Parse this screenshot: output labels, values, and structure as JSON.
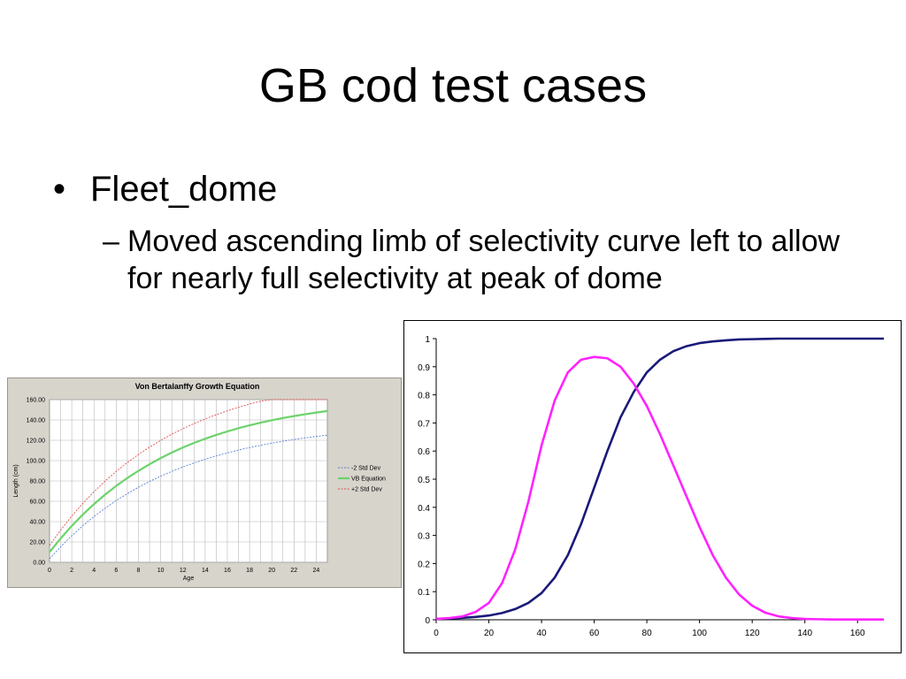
{
  "slide": {
    "title": "GB cod test cases",
    "bullets": [
      {
        "marker": "•",
        "text": "Fleet_dome",
        "sub": [
          {
            "marker": "–",
            "text": "Moved ascending limb of selectivity curve left to allow for nearly full selectivity at peak of dome"
          }
        ]
      }
    ]
  },
  "chart_data": [
    {
      "type": "line",
      "title": "Von Bertalanffy Growth Equation",
      "xlabel": "Age",
      "ylabel": "Length (cm)",
      "xlim": [
        0,
        25
      ],
      "ylim": [
        0,
        160
      ],
      "x_ticks": [
        "0",
        "2",
        "4",
        "6",
        "8",
        "10",
        "12",
        "14",
        "16",
        "18",
        "20",
        "22",
        "24"
      ],
      "y_ticks": [
        "0.00",
        "20.00",
        "40.00",
        "60.00",
        "80.00",
        "100.00",
        "120.00",
        "140.00",
        "160.00"
      ],
      "grid": true,
      "legend_position": "right",
      "x": [
        0,
        1,
        2,
        3,
        4,
        5,
        6,
        7,
        8,
        9,
        10,
        11,
        12,
        13,
        14,
        15,
        16,
        17,
        18,
        19,
        20,
        21,
        22,
        23,
        24,
        25
      ],
      "series": [
        {
          "name": "-2 Std Dev",
          "color": "#5b7fd6",
          "style": "dotted",
          "values": [
            3.5,
            15.3,
            26.1,
            36.0,
            45.0,
            53.2,
            60.7,
            67.5,
            73.8,
            79.5,
            84.7,
            89.4,
            93.8,
            97.7,
            101.3,
            104.6,
            107.6,
            110.4,
            112.9,
            115.1,
            117.2,
            119.1,
            120.8,
            122.4,
            123.8,
            125.1
          ]
        },
        {
          "name": "VB Equation",
          "color": "#6bd36b",
          "style": "solid",
          "values": [
            10.0,
            23.5,
            35.8,
            47.0,
            57.2,
            66.6,
            75.1,
            82.9,
            90.0,
            96.5,
            102.5,
            107.9,
            112.9,
            117.4,
            121.5,
            125.3,
            128.7,
            131.9,
            134.7,
            137.3,
            139.7,
            141.9,
            143.8,
            145.6,
            147.3,
            148.8
          ]
        },
        {
          "name": "+2 Std Dev",
          "color": "#e05050",
          "style": "dotted",
          "values": [
            16.5,
            31.7,
            45.5,
            58.0,
            69.4,
            79.9,
            89.4,
            98.1,
            106.0,
            113.3,
            119.9,
            125.9,
            131.4,
            136.4,
            141.0,
            145.2,
            149.0,
            152.4,
            155.6,
            158.5,
            160.0,
            160.0,
            160.0,
            160.0,
            160.0,
            160.0
          ]
        }
      ]
    },
    {
      "type": "line",
      "title": "",
      "xlabel": "",
      "ylabel": "",
      "xlim": [
        0,
        170
      ],
      "ylim": [
        0,
        1
      ],
      "x_ticks": [
        "0",
        "20",
        "40",
        "60",
        "80",
        "100",
        "120",
        "140",
        "160"
      ],
      "y_ticks": [
        "0",
        "0.1",
        "0.2",
        "0.3",
        "0.4",
        "0.5",
        "0.6",
        "0.7",
        "0.8",
        "0.9",
        "1"
      ],
      "grid": false,
      "legend_position": "none",
      "x": [
        0,
        5,
        10,
        15,
        20,
        25,
        30,
        35,
        40,
        45,
        50,
        55,
        60,
        65,
        70,
        75,
        80,
        85,
        90,
        95,
        100,
        105,
        110,
        115,
        120,
        125,
        130,
        135,
        140,
        145,
        150,
        155,
        160,
        165,
        170
      ],
      "series": [
        {
          "color": "#1a1a7a",
          "values": [
            0.003,
            0.005,
            0.007,
            0.01,
            0.015,
            0.024,
            0.038,
            0.06,
            0.095,
            0.15,
            0.23,
            0.34,
            0.47,
            0.6,
            0.72,
            0.81,
            0.88,
            0.925,
            0.955,
            0.973,
            0.984,
            0.99,
            0.994,
            0.997,
            0.998,
            0.999,
            1.0,
            1.0,
            1.0,
            1.0,
            1.0,
            1.0,
            1.0,
            1.0,
            1.0
          ]
        },
        {
          "color": "#ff22ff",
          "values": [
            0.003,
            0.006,
            0.012,
            0.028,
            0.06,
            0.13,
            0.25,
            0.42,
            0.62,
            0.78,
            0.88,
            0.925,
            0.935,
            0.93,
            0.9,
            0.84,
            0.76,
            0.66,
            0.55,
            0.44,
            0.33,
            0.23,
            0.15,
            0.09,
            0.05,
            0.025,
            0.012,
            0.006,
            0.003,
            0.002,
            0.001,
            0.001,
            0.001,
            0.001,
            0.001
          ]
        }
      ]
    }
  ]
}
